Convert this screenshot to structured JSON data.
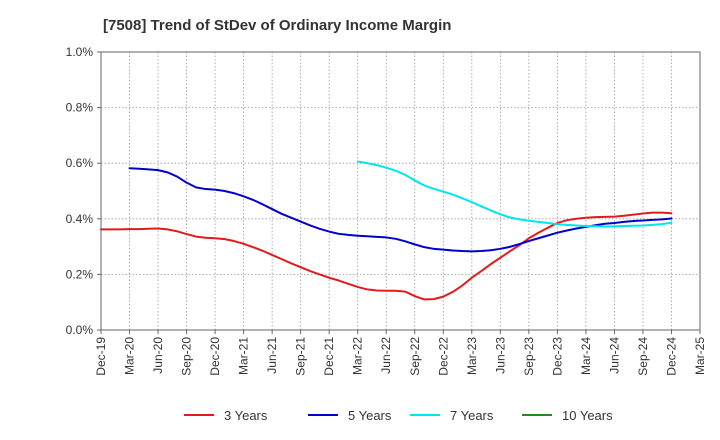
{
  "chart_data": {
    "type": "line",
    "title": "[7508]  Trend of StDev of Ordinary Income Margin",
    "xlabel": "",
    "ylabel": "",
    "x_ticks": [
      "Dec-19",
      "Mar-20",
      "Jun-20",
      "Sep-20",
      "Dec-20",
      "Mar-21",
      "Jun-21",
      "Sep-21",
      "Dec-21",
      "Mar-22",
      "Jun-22",
      "Sep-22",
      "Dec-22",
      "Mar-23",
      "Jun-23",
      "Sep-23",
      "Dec-23",
      "Mar-24",
      "Jun-24",
      "Sep-24",
      "Dec-24",
      "Mar-25"
    ],
    "y_ticks": [
      "0.0%",
      "0.2%",
      "0.4%",
      "0.6%",
      "0.8%",
      "1.0%"
    ],
    "ylim": [
      0,
      1.0
    ],
    "y_unit": "%",
    "grid": true,
    "legend_position": "bottom",
    "series": [
      {
        "name": "3 Years",
        "color": "#e31a1c",
        "points": [
          [
            "Dec-19",
            0.362
          ],
          [
            "Jan-20",
            0.362
          ],
          [
            "Feb-20",
            0.362
          ],
          [
            "Mar-20",
            0.363
          ],
          [
            "Apr-20",
            0.363
          ],
          [
            "May-20",
            0.364
          ],
          [
            "Jun-20",
            0.365
          ],
          [
            "Jul-20",
            0.362
          ],
          [
            "Aug-20",
            0.355
          ],
          [
            "Sep-20",
            0.345
          ],
          [
            "Oct-20",
            0.336
          ],
          [
            "Nov-20",
            0.332
          ],
          [
            "Dec-20",
            0.33
          ],
          [
            "Jan-21",
            0.327
          ],
          [
            "Feb-21",
            0.32
          ],
          [
            "Mar-21",
            0.31
          ],
          [
            "Apr-21",
            0.298
          ],
          [
            "May-21",
            0.285
          ],
          [
            "Jun-21",
            0.27
          ],
          [
            "Jul-21",
            0.255
          ],
          [
            "Aug-21",
            0.24
          ],
          [
            "Sep-21",
            0.226
          ],
          [
            "Oct-21",
            0.212
          ],
          [
            "Nov-21",
            0.2
          ],
          [
            "Dec-21",
            0.188
          ],
          [
            "Jan-22",
            0.178
          ],
          [
            "Feb-22",
            0.166
          ],
          [
            "Mar-22",
            0.155
          ],
          [
            "Apr-22",
            0.146
          ],
          [
            "May-22",
            0.142
          ],
          [
            "Jun-22",
            0.141
          ],
          [
            "Jul-22",
            0.141
          ],
          [
            "Aug-22",
            0.138
          ],
          [
            "Sep-22",
            0.122
          ],
          [
            "Oct-22",
            0.11
          ],
          [
            "Nov-22",
            0.111
          ],
          [
            "Dec-22",
            0.12
          ],
          [
            "Jan-23",
            0.137
          ],
          [
            "Feb-23",
            0.16
          ],
          [
            "Mar-23",
            0.188
          ],
          [
            "Apr-23",
            0.212
          ],
          [
            "May-23",
            0.237
          ],
          [
            "Jun-23",
            0.26
          ],
          [
            "Jul-23",
            0.283
          ],
          [
            "Aug-23",
            0.305
          ],
          [
            "Sep-23",
            0.33
          ],
          [
            "Oct-23",
            0.35
          ],
          [
            "Nov-23",
            0.368
          ],
          [
            "Dec-23",
            0.385
          ],
          [
            "Jan-24",
            0.395
          ],
          [
            "Feb-24",
            0.4
          ],
          [
            "Mar-24",
            0.404
          ],
          [
            "Apr-24",
            0.406
          ],
          [
            "May-24",
            0.407
          ],
          [
            "Jun-24",
            0.408
          ],
          [
            "Jul-24",
            0.411
          ],
          [
            "Aug-24",
            0.415
          ],
          [
            "Sep-24",
            0.419
          ],
          [
            "Oct-24",
            0.422
          ],
          [
            "Nov-24",
            0.422
          ],
          [
            "Dec-24",
            0.42
          ]
        ]
      },
      {
        "name": "5 Years",
        "color": "#0000cc",
        "points": [
          [
            "Mar-20",
            0.582
          ],
          [
            "Apr-20",
            0.58
          ],
          [
            "May-20",
            0.578
          ],
          [
            "Jun-20",
            0.575
          ],
          [
            "Jul-20",
            0.567
          ],
          [
            "Aug-20",
            0.552
          ],
          [
            "Sep-20",
            0.53
          ],
          [
            "Oct-20",
            0.513
          ],
          [
            "Nov-20",
            0.507
          ],
          [
            "Dec-20",
            0.505
          ],
          [
            "Jan-21",
            0.5
          ],
          [
            "Feb-21",
            0.492
          ],
          [
            "Mar-21",
            0.481
          ],
          [
            "Apr-21",
            0.468
          ],
          [
            "May-21",
            0.452
          ],
          [
            "Jun-21",
            0.435
          ],
          [
            "Jul-21",
            0.418
          ],
          [
            "Aug-21",
            0.404
          ],
          [
            "Sep-21",
            0.39
          ],
          [
            "Oct-21",
            0.376
          ],
          [
            "Nov-21",
            0.364
          ],
          [
            "Dec-21",
            0.354
          ],
          [
            "Jan-22",
            0.346
          ],
          [
            "Feb-22",
            0.342
          ],
          [
            "Mar-22",
            0.339
          ],
          [
            "Apr-22",
            0.337
          ],
          [
            "May-22",
            0.335
          ],
          [
            "Jun-22",
            0.333
          ],
          [
            "Jul-22",
            0.328
          ],
          [
            "Aug-22",
            0.319
          ],
          [
            "Sep-22",
            0.308
          ],
          [
            "Oct-22",
            0.298
          ],
          [
            "Nov-22",
            0.292
          ],
          [
            "Dec-22",
            0.289
          ],
          [
            "Jan-23",
            0.286
          ],
          [
            "Feb-23",
            0.284
          ],
          [
            "Mar-23",
            0.283
          ],
          [
            "Apr-23",
            0.284
          ],
          [
            "May-23",
            0.287
          ],
          [
            "Jun-23",
            0.292
          ],
          [
            "Jul-23",
            0.299
          ],
          [
            "Aug-23",
            0.309
          ],
          [
            "Sep-23",
            0.32
          ],
          [
            "Oct-23",
            0.33
          ],
          [
            "Nov-23",
            0.34
          ],
          [
            "Dec-23",
            0.35
          ],
          [
            "Jan-24",
            0.358
          ],
          [
            "Feb-24",
            0.365
          ],
          [
            "Mar-24",
            0.371
          ],
          [
            "Apr-24",
            0.377
          ],
          [
            "May-24",
            0.382
          ],
          [
            "Jun-24",
            0.385
          ],
          [
            "Jul-24",
            0.389
          ],
          [
            "Aug-24",
            0.392
          ],
          [
            "Sep-24",
            0.394
          ],
          [
            "Oct-24",
            0.396
          ],
          [
            "Nov-24",
            0.398
          ],
          [
            "Dec-24",
            0.401
          ]
        ]
      },
      {
        "name": "7 Years",
        "color": "#00e5ee",
        "points": [
          [
            "Mar-22",
            0.606
          ],
          [
            "Apr-22",
            0.6
          ],
          [
            "May-22",
            0.593
          ],
          [
            "Jun-22",
            0.584
          ],
          [
            "Jul-22",
            0.573
          ],
          [
            "Aug-22",
            0.558
          ],
          [
            "Sep-22",
            0.538
          ],
          [
            "Oct-22",
            0.52
          ],
          [
            "Nov-22",
            0.508
          ],
          [
            "Dec-22",
            0.498
          ],
          [
            "Jan-23",
            0.487
          ],
          [
            "Feb-23",
            0.474
          ],
          [
            "Mar-23",
            0.46
          ],
          [
            "Apr-23",
            0.445
          ],
          [
            "May-23",
            0.43
          ],
          [
            "Jun-23",
            0.416
          ],
          [
            "Jul-23",
            0.405
          ],
          [
            "Aug-23",
            0.398
          ],
          [
            "Sep-23",
            0.393
          ],
          [
            "Oct-23",
            0.389
          ],
          [
            "Nov-23",
            0.385
          ],
          [
            "Dec-23",
            0.381
          ],
          [
            "Jan-24",
            0.378
          ],
          [
            "Feb-24",
            0.376
          ],
          [
            "Mar-24",
            0.374
          ],
          [
            "Apr-24",
            0.373
          ],
          [
            "May-24",
            0.372
          ],
          [
            "Jun-24",
            0.373
          ],
          [
            "Jul-24",
            0.374
          ],
          [
            "Aug-24",
            0.375
          ],
          [
            "Sep-24",
            0.376
          ],
          [
            "Oct-24",
            0.378
          ],
          [
            "Nov-24",
            0.381
          ],
          [
            "Dec-24",
            0.386
          ]
        ]
      },
      {
        "name": "10 Years",
        "color": "#228b22",
        "points": []
      }
    ]
  }
}
